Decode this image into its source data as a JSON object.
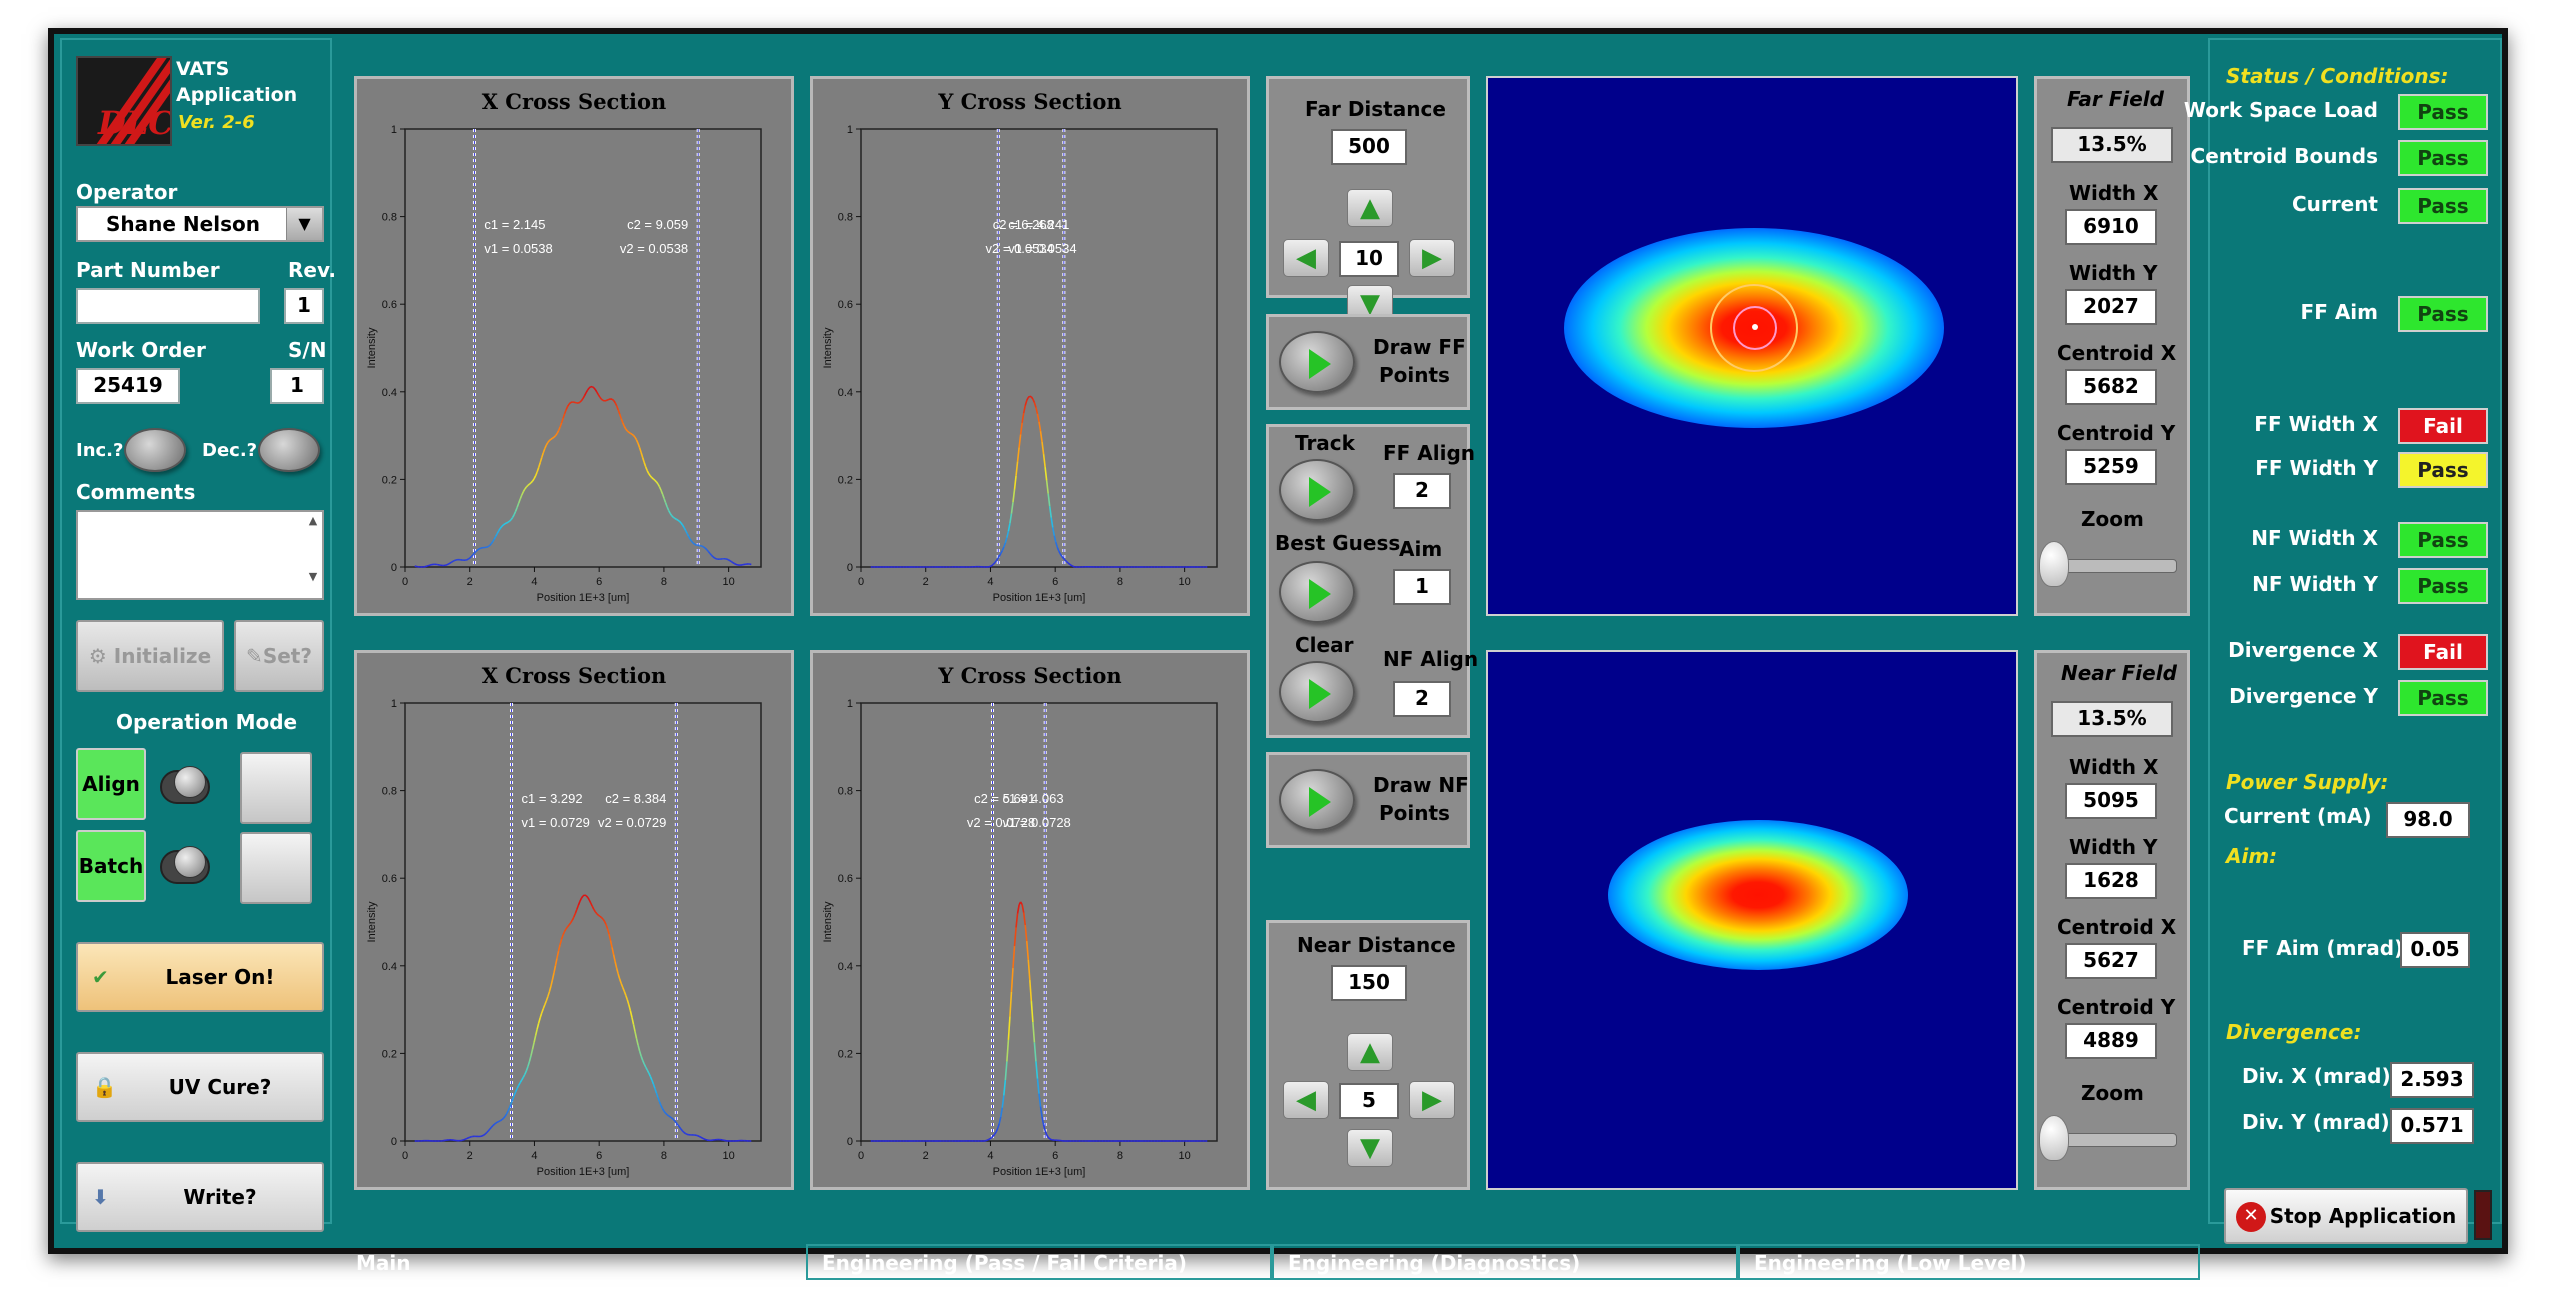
{
  "app": {
    "logo_text": "DLC",
    "title_line1": "VATS",
    "title_line2": "Application",
    "version": "Ver. 2-6"
  },
  "left": {
    "operator_label": "Operator",
    "operator_value": "Shane Nelson",
    "part_label": "Part Number",
    "part_value": "",
    "rev_label": "Rev.",
    "rev_value": "1",
    "wo_label": "Work Order",
    "wo_value": "25419",
    "sn_label": "S/N",
    "sn_value": "1",
    "inc_label": "Inc.?",
    "dec_label": "Dec.?",
    "comments_label": "Comments",
    "comments_value": "",
    "initialize_label": "Initialize",
    "set_label": "Set?",
    "mode_label": "Operation Mode",
    "align_label": "Align",
    "batch_label": "Batch",
    "laser_label": "Laser On!",
    "uv_label": "UV Cure?",
    "write_label": "Write?"
  },
  "plots": [
    {
      "title": "X Cross Section",
      "c1": "c1 = 2.145",
      "v1": "v1 = 0.0538",
      "c2": "c2 = 9.059",
      "v2": "v2 = 0.0538",
      "ylabel": "Intensity",
      "xlabel": "Position 1E+3 [um]"
    },
    {
      "title": "Y Cross Section",
      "c1": "c1 = 4.241",
      "v1": "v1 = 0.0534",
      "c2": "c2 = 6.268",
      "v2": "v2 = 0.0534",
      "ylabel": "Intensity",
      "xlabel": "Position 1E+3 [um]"
    },
    {
      "title": "X Cross Section",
      "c1": "c1 = 3.292",
      "v1": "v1 = 0.0729",
      "c2": "c2 = 8.384",
      "v2": "v2 = 0.0729",
      "ylabel": "Intensity",
      "xlabel": "Position 1E+3 [um]"
    },
    {
      "title": "Y Cross Section",
      "c1": "c1 = 4.063",
      "v1": "v1 = 0.0728",
      "c2": "c2 = 5.691",
      "v2": "v2 = 0.0728",
      "ylabel": "Intensity",
      "xlabel": "Position 1E+3 [um]"
    }
  ],
  "plot_axes": {
    "xticks": [
      "0",
      "2",
      "4",
      "6",
      "8",
      "10"
    ],
    "yticks": [
      "0",
      "0.2",
      "0.4",
      "0.6",
      "0.8",
      "1"
    ]
  },
  "chart_data": [
    {
      "type": "line",
      "title": "X Cross Section",
      "xlabel": "Position 1E+3 [um]",
      "ylabel": "Intensity",
      "xlim": [
        0,
        11
      ],
      "ylim": [
        0,
        1
      ],
      "peak_x": 5.8,
      "peak_y": 0.4,
      "width": 1.6,
      "cursors": [
        2.145,
        9.059
      ]
    },
    {
      "type": "line",
      "title": "Y Cross Section",
      "xlabel": "Position 1E+3 [um]",
      "ylabel": "Intensity",
      "xlim": [
        0,
        11
      ],
      "ylim": [
        0,
        1
      ],
      "peak_x": 5.25,
      "peak_y": 0.4,
      "width": 0.4,
      "cursors": [
        4.241,
        6.268
      ]
    },
    {
      "type": "line",
      "title": "X Cross Section",
      "xlabel": "Position 1E+3 [um]",
      "ylabel": "Intensity",
      "xlim": [
        0,
        11
      ],
      "ylim": [
        0,
        1
      ],
      "peak_x": 5.6,
      "peak_y": 0.55,
      "width": 1.2,
      "cursors": [
        3.292,
        8.384
      ]
    },
    {
      "type": "line",
      "title": "Y Cross Section",
      "xlabel": "Position 1E+3 [um]",
      "ylabel": "Intensity",
      "xlim": [
        0,
        11
      ],
      "ylim": [
        0,
        1
      ],
      "peak_x": 4.95,
      "peak_y": 0.55,
      "width": 0.3,
      "cursors": [
        4.063,
        5.691
      ]
    }
  ],
  "mid": {
    "far_distance_label": "Far Distance",
    "far_distance_value": "500",
    "far_step": "10",
    "draw_ff_label1": "Draw FF",
    "draw_ff_label2": "Points",
    "track_label": "Track",
    "ff_align_label": "FF Align",
    "ff_align_value": "2",
    "best_guess_label": "Best Guess",
    "aim_label": "Aim",
    "aim_value": "1",
    "clear_label": "Clear",
    "nf_align_label": "NF Align",
    "nf_align_value": "2",
    "draw_nf_label1": "Draw NF",
    "draw_nf_label2": "Points",
    "near_distance_label": "Near Distance",
    "near_distance_value": "150",
    "near_step": "5"
  },
  "far": {
    "title": "Far Field",
    "pct": "13.5%",
    "wx_label": "Width X",
    "wx": "6910",
    "wy_label": "Width Y",
    "wy": "2027",
    "cx_label": "Centroid X",
    "cx": "5682",
    "cy_label": "Centroid Y",
    "cy": "5259",
    "zoom_label": "Zoom"
  },
  "near": {
    "title": "Near Field",
    "pct": "13.5%",
    "wx_label": "Width X",
    "wx": "5095",
    "wy_label": "Width Y",
    "wy": "1628",
    "cx_label": "Centroid X",
    "cx": "5627",
    "cy_label": "Centroid Y",
    "cy": "4889",
    "zoom_label": "Zoom"
  },
  "status": {
    "title": "Status / Conditions:",
    "items": [
      {
        "label": "Work Space Load",
        "value": "Pass"
      },
      {
        "label": "Centroid Bounds",
        "value": "Pass"
      },
      {
        "label": "Current",
        "value": "Pass"
      },
      {
        "label": "FF Aim",
        "value": "Pass"
      },
      {
        "label": "FF Width X",
        "value": "Fail"
      },
      {
        "label": "FF Width Y",
        "value": "Pass"
      },
      {
        "label": "NF Width X",
        "value": "Pass"
      },
      {
        "label": "NF Width Y",
        "value": "Pass"
      },
      {
        "label": "Divergence X",
        "value": "Fail"
      },
      {
        "label": "Divergence Y",
        "value": "Pass"
      }
    ],
    "power_title": "Power Supply:",
    "current_label": "Current (mA)",
    "current_value": "98.0",
    "aim_title": "Aim:",
    "ff_aim_label": "FF Aim (mrad)",
    "ff_aim_value": "0.05",
    "div_title": "Divergence:",
    "divx_label": "Div. X (mrad)",
    "divx_value": "2.593",
    "divy_label": "Div. Y (mrad)",
    "divy_value": "0.571",
    "stop_label": "Stop Application"
  },
  "tabs": [
    "Main",
    "Engineering (Pass / Fail Criteria)",
    "Engineering (Diagnostics)",
    "Engineering (Low Level)"
  ],
  "colors": {
    "background": "#0a7878",
    "pass": "#2ee62e",
    "fail": "#e0141e",
    "warn": "#f4f42c",
    "beam_bg": "#00008b"
  }
}
